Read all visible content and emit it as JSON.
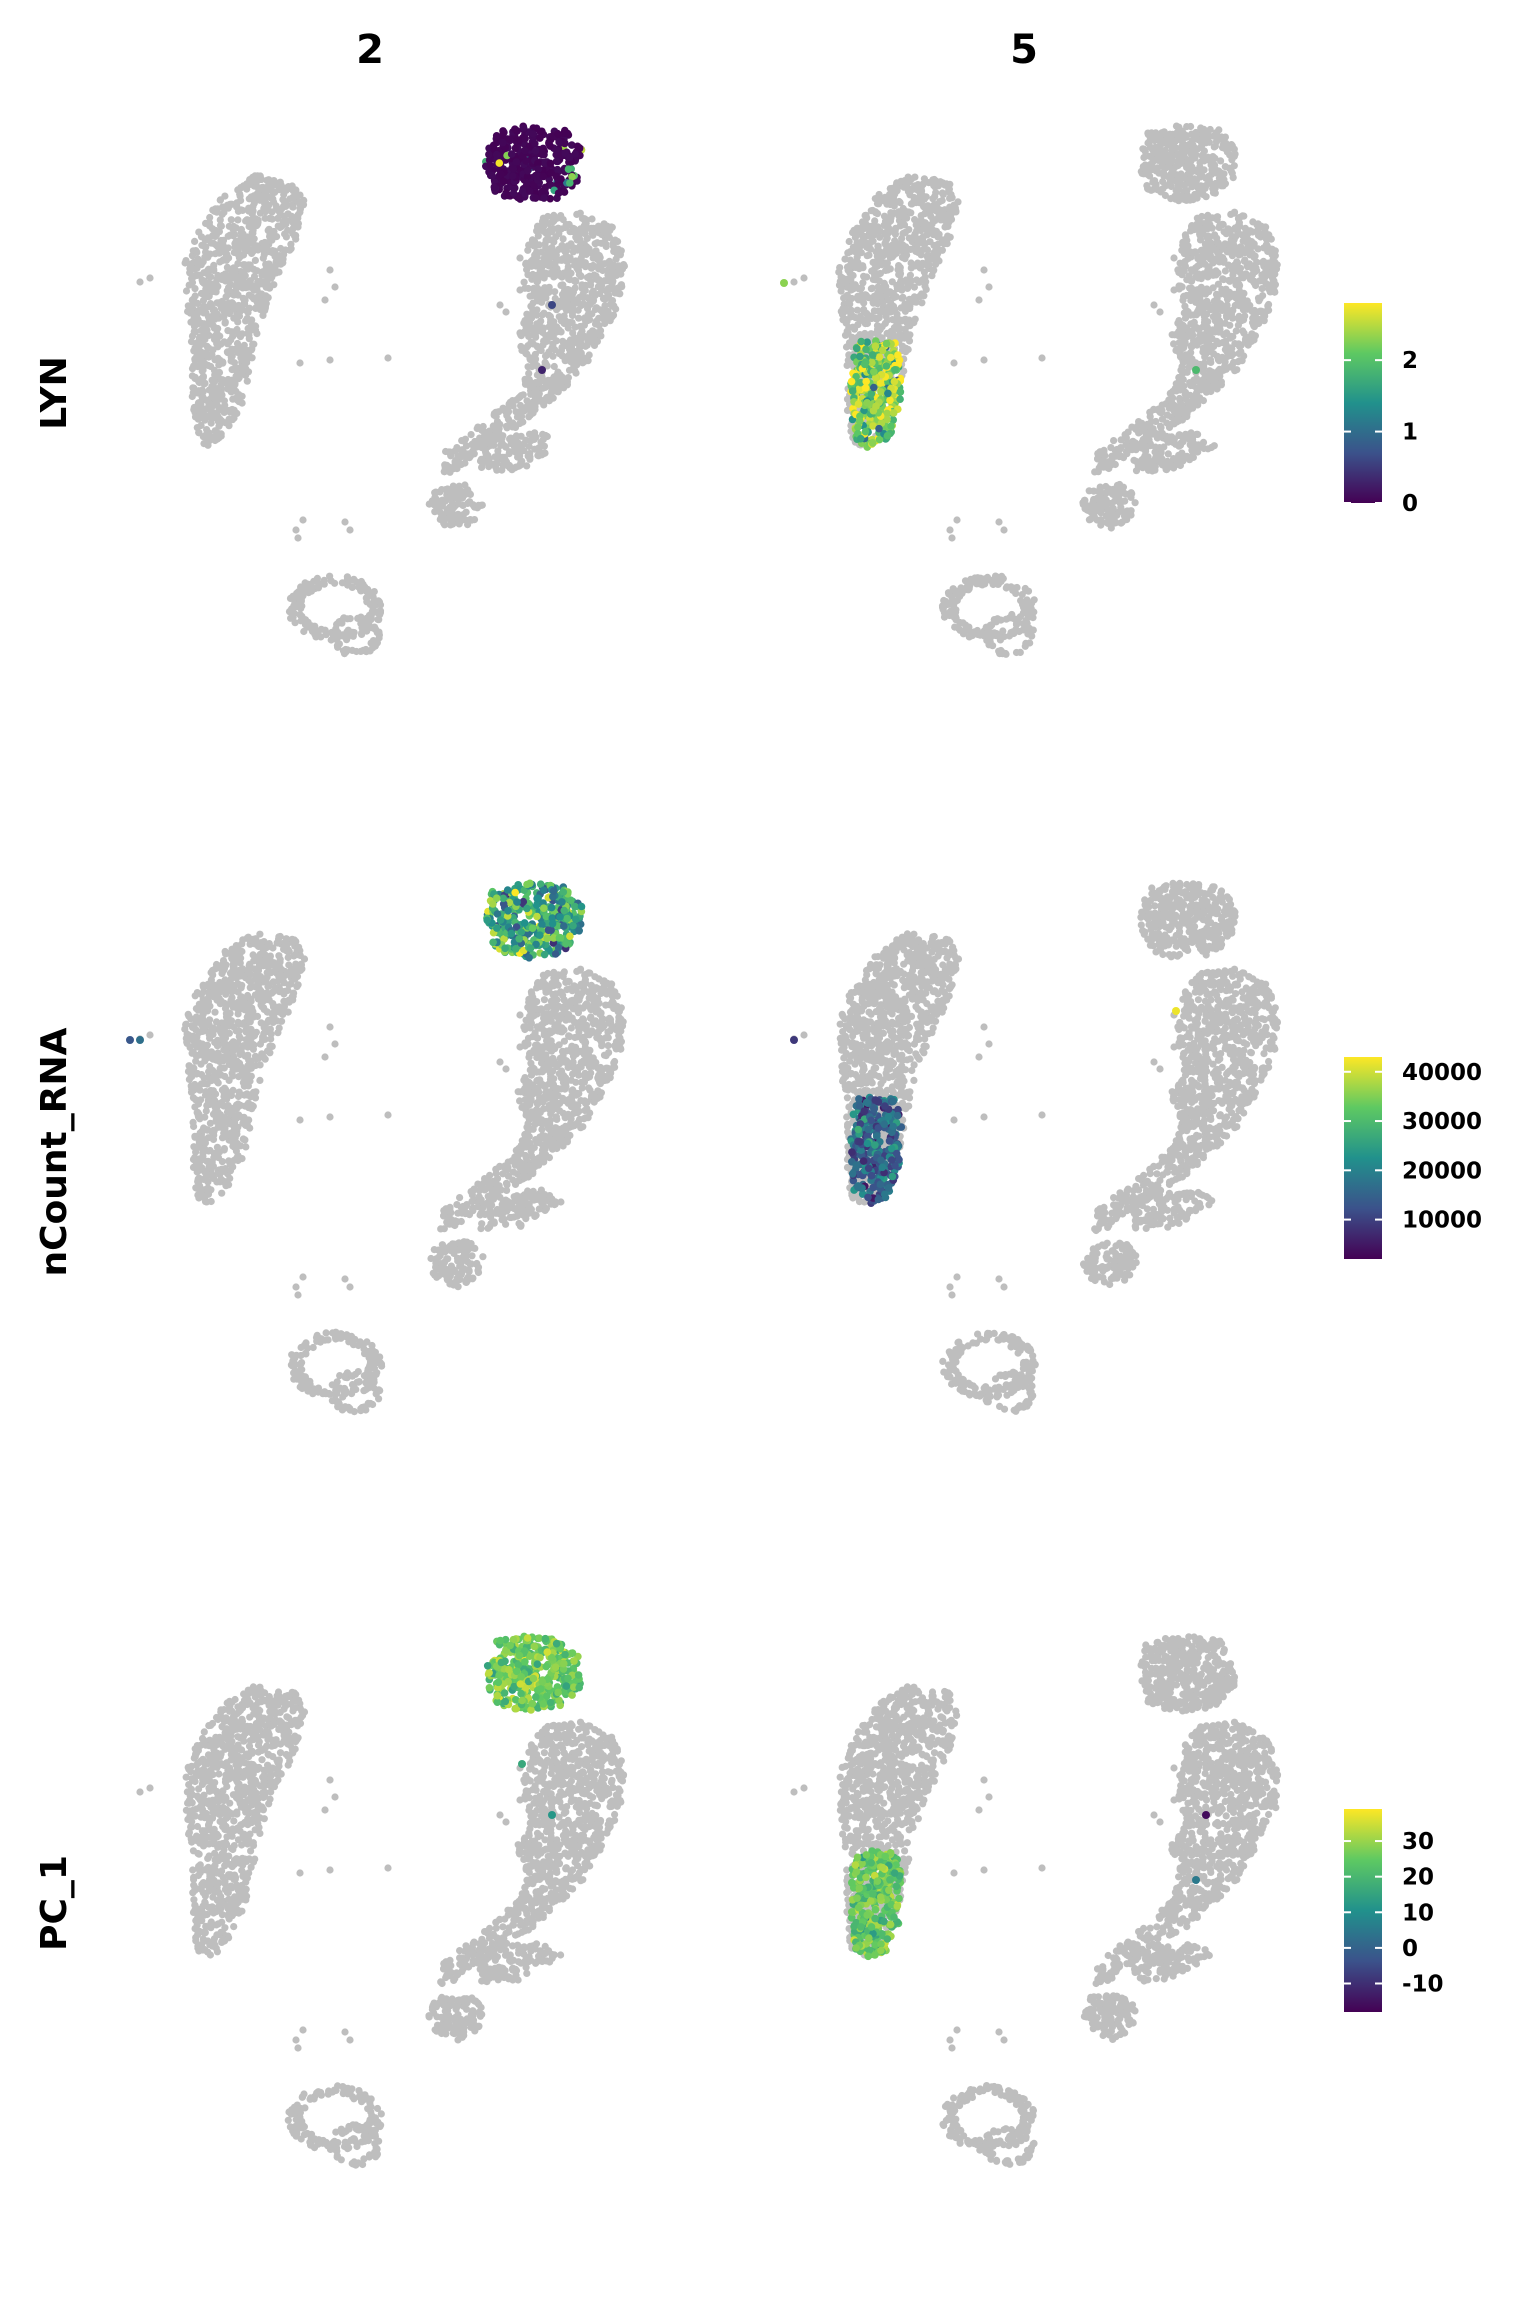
{
  "chart_data": {
    "type": "scatter",
    "title": "",
    "columns": [
      "2",
      "5"
    ],
    "rows": [
      {
        "feature": "LYN",
        "range": [
          0,
          2.8
        ],
        "ticks": [
          0,
          1,
          2
        ],
        "tick_labels": [
          "0",
          "1",
          "2"
        ]
      },
      {
        "feature": "nCount_RNA",
        "range": [
          2000,
          43000
        ],
        "ticks": [
          10000,
          20000,
          30000,
          40000
        ],
        "tick_labels": [
          "10000",
          "20000",
          "30000",
          "40000"
        ]
      },
      {
        "feature": "PC_1",
        "range": [
          -18,
          39
        ],
        "ticks": [
          -10,
          0,
          10,
          20,
          30
        ],
        "tick_labels": [
          "-10",
          "0",
          "10",
          "20",
          "30"
        ]
      }
    ],
    "background_color": "#bebebe",
    "colormap": [
      "#440154",
      "#3b528b",
      "#21918c",
      "#5ec962",
      "#fde725"
    ],
    "panels": [
      {
        "row": "LYN",
        "col": "2",
        "highlight": "top_cluster",
        "mean": 0.12,
        "spread": 0.35,
        "extra": [
          0.6,
          0.3
        ]
      },
      {
        "row": "LYN",
        "col": "5",
        "highlight": "left_bottom",
        "mean": 2.25,
        "spread": 0.5,
        "extra": [
          1.9,
          2.3
        ]
      },
      {
        "row": "nCount_RNA",
        "col": "2",
        "highlight": "top_cluster",
        "mean": 26000,
        "spread": 7500,
        "extra": [
          13000,
          17000
        ]
      },
      {
        "row": "nCount_RNA",
        "col": "5",
        "highlight": "left_bottom",
        "mean": 16000,
        "spread": 5000,
        "extra": [
          9000,
          42000
        ]
      },
      {
        "row": "PC_1",
        "col": "2",
        "highlight": "top_cluster",
        "mean": 26,
        "spread": 5,
        "extra": [
          16,
          12
        ]
      },
      {
        "row": "PC_1",
        "col": "5",
        "highlight": "left_bottom",
        "mean": 25,
        "spread": 5,
        "extra": [
          -16,
          5
        ]
      }
    ]
  }
}
